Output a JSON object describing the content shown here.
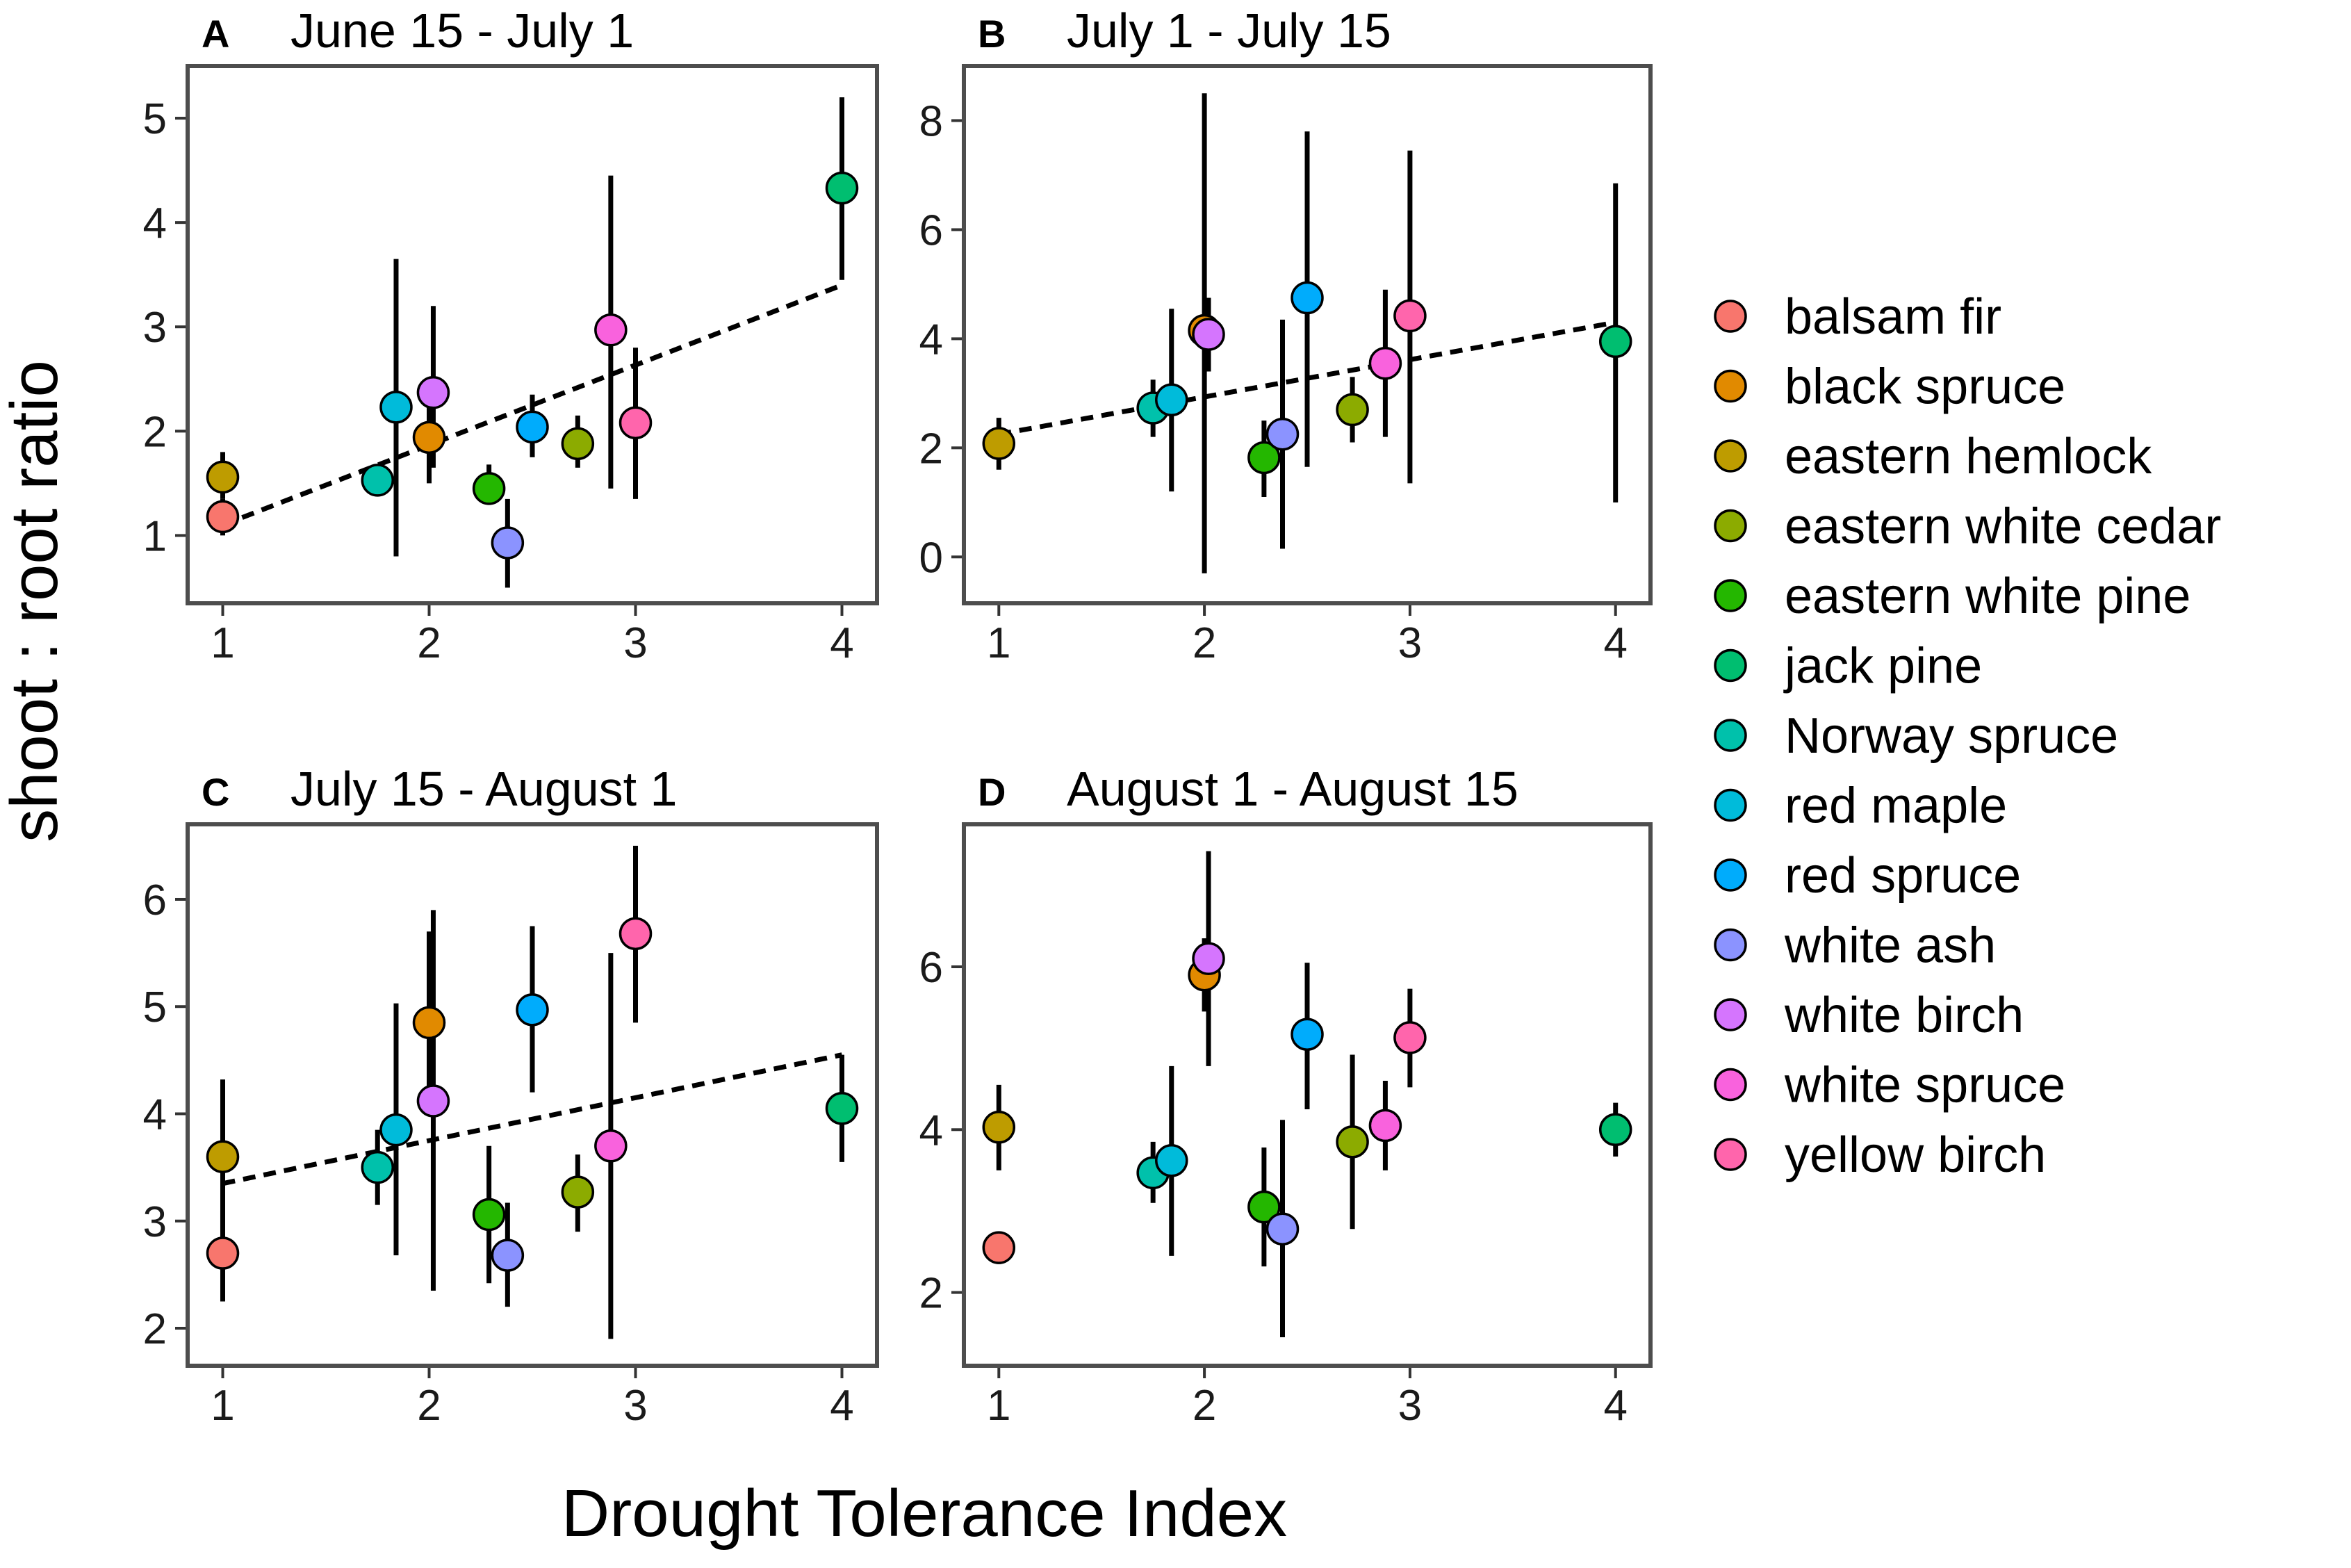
{
  "figure": {
    "ylabel": "shoot : root ratio",
    "xlabel": "Drought Tolerance Index"
  },
  "species": [
    {
      "name": "balsam fir",
      "color": "#F8766D"
    },
    {
      "name": "black spruce",
      "color": "#E18A00"
    },
    {
      "name": "eastern hemlock",
      "color": "#BE9C00"
    },
    {
      "name": "eastern white cedar",
      "color": "#8CAB00"
    },
    {
      "name": "eastern white pine",
      "color": "#24B700"
    },
    {
      "name": "jack pine",
      "color": "#00BE70"
    },
    {
      "name": "Norway spruce",
      "color": "#00C1AB"
    },
    {
      "name": "red maple",
      "color": "#00BBDA"
    },
    {
      "name": "red spruce",
      "color": "#00ACFC"
    },
    {
      "name": "white ash",
      "color": "#8B93FF"
    },
    {
      "name": "white birch",
      "color": "#D575FE"
    },
    {
      "name": "white spruce",
      "color": "#F962DD"
    },
    {
      "name": "yellow birch",
      "color": "#FF65AC"
    }
  ],
  "chart_data": [
    {
      "type": "scatter",
      "panel": "A",
      "title": "June 15 - July 1",
      "xlim": [
        0.83,
        4.17
      ],
      "ylim": [
        0.35,
        5.5
      ],
      "xticks": [
        1,
        2,
        3,
        4
      ],
      "yticks": [
        1,
        2,
        3,
        4,
        5
      ],
      "trend": {
        "x0": 1,
        "y0": 1.1,
        "x1": 4,
        "y1": 3.4
      },
      "points": [
        {
          "species": "balsam fir",
          "x": 1,
          "y": 1.18,
          "lo": 1.0,
          "hi": 1.35
        },
        {
          "species": "eastern hemlock",
          "x": 1,
          "y": 1.56,
          "lo": 1.35,
          "hi": 1.8
        },
        {
          "species": "Norway spruce",
          "x": 1.75,
          "y": 1.53,
          "lo": 1.38,
          "hi": 1.68
        },
        {
          "species": "red maple",
          "x": 1.84,
          "y": 2.23,
          "lo": 0.8,
          "hi": 3.65
        },
        {
          "species": "black spruce",
          "x": 2.0,
          "y": 1.94,
          "lo": 1.5,
          "hi": 2.3
        },
        {
          "species": "white birch",
          "x": 2.02,
          "y": 2.37,
          "lo": 1.65,
          "hi": 3.2
        },
        {
          "species": "eastern white pine",
          "x": 2.29,
          "y": 1.45,
          "lo": 1.3,
          "hi": 1.68
        },
        {
          "species": "white ash",
          "x": 2.38,
          "y": 0.93,
          "lo": 0.5,
          "hi": 1.35
        },
        {
          "species": "red spruce",
          "x": 2.5,
          "y": 2.04,
          "lo": 1.75,
          "hi": 2.35
        },
        {
          "species": "eastern white cedar",
          "x": 2.72,
          "y": 1.88,
          "lo": 1.65,
          "hi": 2.15
        },
        {
          "species": "white spruce",
          "x": 2.88,
          "y": 2.97,
          "lo": 1.45,
          "hi": 4.45
        },
        {
          "species": "yellow birch",
          "x": 3.0,
          "y": 2.08,
          "lo": 1.35,
          "hi": 2.8
        },
        {
          "species": "jack pine",
          "x": 4.0,
          "y": 4.33,
          "lo": 3.45,
          "hi": 5.2
        }
      ]
    },
    {
      "type": "scatter",
      "panel": "B",
      "title": "July 1 - July 15",
      "xlim": [
        0.83,
        4.17
      ],
      "ylim": [
        -0.85,
        9.0
      ],
      "xticks": [
        1,
        2,
        3,
        4
      ],
      "yticks": [
        0,
        2,
        4,
        6,
        8
      ],
      "trend": {
        "x0": 1,
        "y0": 2.25,
        "x1": 4,
        "y1": 4.3
      },
      "points": [
        {
          "species": "eastern hemlock",
          "x": 1,
          "y": 2.08,
          "lo": 1.6,
          "hi": 2.55
        },
        {
          "species": "Norway spruce",
          "x": 1.75,
          "y": 2.73,
          "lo": 2.2,
          "hi": 3.25
        },
        {
          "species": "red maple",
          "x": 1.84,
          "y": 2.88,
          "lo": 1.2,
          "hi": 4.55
        },
        {
          "species": "black spruce",
          "x": 2.0,
          "y": 4.15,
          "lo": -0.3,
          "hi": 8.5
        },
        {
          "species": "white birch",
          "x": 2.02,
          "y": 4.08,
          "lo": 3.4,
          "hi": 4.75
        },
        {
          "species": "eastern white pine",
          "x": 2.29,
          "y": 1.82,
          "lo": 1.1,
          "hi": 2.5
        },
        {
          "species": "white ash",
          "x": 2.38,
          "y": 2.25,
          "lo": 0.15,
          "hi": 4.35
        },
        {
          "species": "red spruce",
          "x": 2.5,
          "y": 4.75,
          "lo": 1.65,
          "hi": 7.8
        },
        {
          "species": "eastern white cedar",
          "x": 2.72,
          "y": 2.7,
          "lo": 2.1,
          "hi": 3.3
        },
        {
          "species": "white spruce",
          "x": 2.88,
          "y": 3.55,
          "lo": 2.2,
          "hi": 4.9
        },
        {
          "species": "yellow birch",
          "x": 3.0,
          "y": 4.42,
          "lo": 1.35,
          "hi": 7.45
        },
        {
          "species": "jack pine",
          "x": 4.0,
          "y": 3.95,
          "lo": 1.0,
          "hi": 6.85
        }
      ]
    },
    {
      "type": "scatter",
      "panel": "C",
      "title": "July 15 - August 1",
      "xlim": [
        0.83,
        4.17
      ],
      "ylim": [
        1.65,
        6.7
      ],
      "xticks": [
        1,
        2,
        3,
        4
      ],
      "yticks": [
        2,
        3,
        4,
        5,
        6
      ],
      "trend": {
        "x0": 1,
        "y0": 3.35,
        "x1": 4,
        "y1": 4.55
      },
      "points": [
        {
          "species": "balsam fir",
          "x": 1,
          "y": 2.7,
          "lo": 2.25,
          "hi": 3.1
        },
        {
          "species": "eastern hemlock",
          "x": 1,
          "y": 3.6,
          "lo": 2.9,
          "hi": 4.32
        },
        {
          "species": "Norway spruce",
          "x": 1.75,
          "y": 3.5,
          "lo": 3.15,
          "hi": 3.85
        },
        {
          "species": "red maple",
          "x": 1.84,
          "y": 3.85,
          "lo": 2.68,
          "hi": 5.03
        },
        {
          "species": "black spruce",
          "x": 2.0,
          "y": 4.85,
          "lo": 4.0,
          "hi": 5.7
        },
        {
          "species": "white birch",
          "x": 2.02,
          "y": 4.12,
          "lo": 2.35,
          "hi": 5.9
        },
        {
          "species": "eastern white pine",
          "x": 2.29,
          "y": 3.06,
          "lo": 2.42,
          "hi": 3.7
        },
        {
          "species": "white ash",
          "x": 2.38,
          "y": 2.68,
          "lo": 2.2,
          "hi": 3.17
        },
        {
          "species": "red spruce",
          "x": 2.5,
          "y": 4.97,
          "lo": 4.2,
          "hi": 5.75
        },
        {
          "species": "eastern white cedar",
          "x": 2.72,
          "y": 3.27,
          "lo": 2.9,
          "hi": 3.62
        },
        {
          "species": "white spruce",
          "x": 2.88,
          "y": 3.7,
          "lo": 1.9,
          "hi": 5.5
        },
        {
          "species": "yellow birch",
          "x": 3.0,
          "y": 5.68,
          "lo": 4.85,
          "hi": 6.5
        },
        {
          "species": "jack pine",
          "x": 4.0,
          "y": 4.05,
          "lo": 3.55,
          "hi": 4.55
        }
      ]
    },
    {
      "type": "scatter",
      "panel": "D",
      "title": "August 1 - August 15",
      "xlim": [
        0.83,
        4.17
      ],
      "ylim": [
        1.1,
        7.75
      ],
      "xticks": [
        1,
        2,
        3,
        4
      ],
      "yticks": [
        2,
        4,
        6
      ],
      "trend": null,
      "points": [
        {
          "species": "balsam fir",
          "x": 1,
          "y": 2.55,
          "lo": 2.35,
          "hi": 2.75
        },
        {
          "species": "eastern hemlock",
          "x": 1,
          "y": 4.03,
          "lo": 3.5,
          "hi": 4.55
        },
        {
          "species": "Norway spruce",
          "x": 1.75,
          "y": 3.47,
          "lo": 3.1,
          "hi": 3.85
        },
        {
          "species": "red maple",
          "x": 1.84,
          "y": 3.62,
          "lo": 2.45,
          "hi": 4.78
        },
        {
          "species": "black spruce",
          "x": 2.0,
          "y": 5.9,
          "lo": 5.45,
          "hi": 6.35
        },
        {
          "species": "white birch",
          "x": 2.02,
          "y": 6.1,
          "lo": 4.78,
          "hi": 7.42
        },
        {
          "species": "eastern white pine",
          "x": 2.29,
          "y": 3.05,
          "lo": 2.32,
          "hi": 3.78
        },
        {
          "species": "white ash",
          "x": 2.38,
          "y": 2.78,
          "lo": 1.45,
          "hi": 4.12
        },
        {
          "species": "red spruce",
          "x": 2.5,
          "y": 5.17,
          "lo": 4.25,
          "hi": 6.05
        },
        {
          "species": "eastern white cedar",
          "x": 2.72,
          "y": 3.85,
          "lo": 2.78,
          "hi": 4.92
        },
        {
          "species": "white spruce",
          "x": 2.88,
          "y": 4.05,
          "lo": 3.5,
          "hi": 4.6
        },
        {
          "species": "yellow birch",
          "x": 3.0,
          "y": 5.13,
          "lo": 4.52,
          "hi": 5.73
        },
        {
          "species": "jack pine",
          "x": 4.0,
          "y": 4.0,
          "lo": 3.67,
          "hi": 4.33
        }
      ]
    }
  ]
}
